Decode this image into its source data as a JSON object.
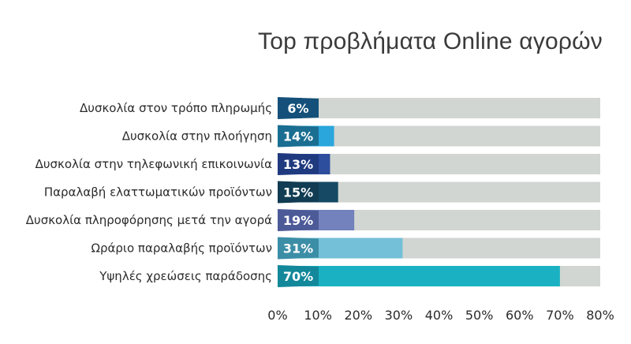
{
  "chart_data": {
    "type": "bar",
    "orientation": "horizontal",
    "title": "Top προβλήματα Online αγορών",
    "categories": [
      "Δυσκολία στον τρόπο πληρωμής",
      "Δυσκολία στην πλοήγηση",
      "Δυσκολία στην τηλεφωνική επικοινωνία",
      "Παραλαβή ελαττωματικών προϊόντων",
      "Δυσκολία πληροφόρησης μετά την αγορά",
      "Ωράριο παραλαβής προϊόντων",
      "Υψηλές χρεώσεις παράδοσης"
    ],
    "values": [
      6,
      14,
      13,
      15,
      19,
      31,
      70
    ],
    "value_labels": [
      "6%",
      "14%",
      "13%",
      "15%",
      "19%",
      "31%",
      "70%"
    ],
    "xlim": [
      0,
      80
    ],
    "xticks": [
      0,
      10,
      20,
      30,
      40,
      50,
      60,
      70,
      80
    ],
    "xtick_labels": [
      "0%",
      "10%",
      "20%",
      "30%",
      "40%",
      "50%",
      "60%",
      "70%",
      "80%"
    ],
    "grid": false,
    "legend": "none",
    "colors": {
      "bars": [
        "#1b5d8f",
        "#2aa6dc",
        "#2d4d9d",
        "#164a64",
        "#7381bd",
        "#74c0d8",
        "#1ab2c3"
      ],
      "badges": [
        "#14507a",
        "#1a6e91",
        "#203a80",
        "#113c53",
        "#4d5a98",
        "#3c8ea7",
        "#13889a"
      ],
      "track": "#d1d6d2"
    }
  }
}
